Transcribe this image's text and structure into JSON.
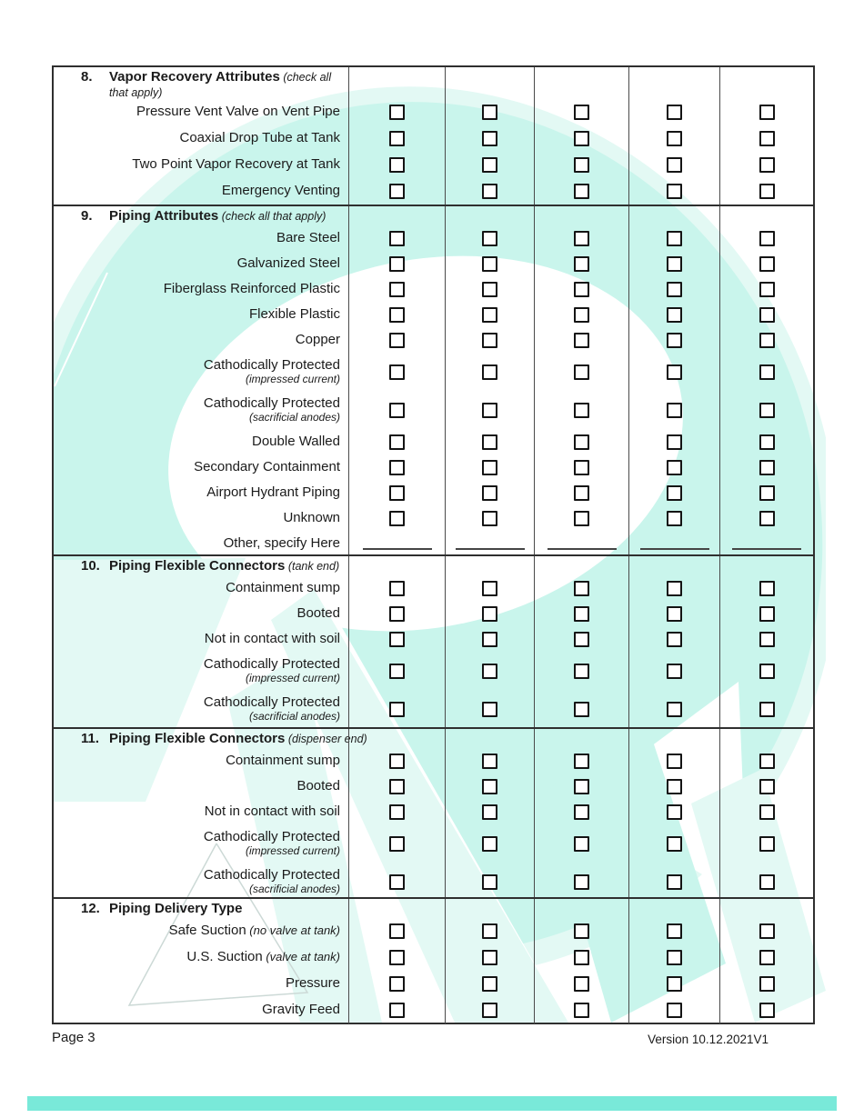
{
  "table": {
    "checkbox_columns": 5,
    "sections": [
      {
        "number": "8.",
        "title": "Vapor Recovery Attributes",
        "note": "(check all that apply)",
        "rows": [
          {
            "label": "Pressure Vent Valve on Vent Pipe"
          },
          {
            "label": "Coaxial Drop Tube at Tank"
          },
          {
            "label": "Two Point Vapor Recovery at Tank"
          },
          {
            "label": "Emergency Venting"
          }
        ]
      },
      {
        "number": "9.",
        "title": "Piping Attributes",
        "note": "(check all that apply)",
        "rows": [
          {
            "label": "Bare Steel"
          },
          {
            "label": "Galvanized Steel"
          },
          {
            "label": "Fiberglass Reinforced Plastic"
          },
          {
            "label": "Flexible Plastic"
          },
          {
            "label": "Copper"
          },
          {
            "label": "Cathodically Protected",
            "sublabel": "(impressed current)"
          },
          {
            "label": "Cathodically Protected",
            "sublabel": "(sacrificial anodes)"
          },
          {
            "label": "Double Walled"
          },
          {
            "label": "Secondary Containment"
          },
          {
            "label": "Airport Hydrant Piping"
          },
          {
            "label": "Unknown"
          },
          {
            "label": "Other, specify Here",
            "blank": true
          }
        ]
      },
      {
        "number": "10.",
        "title": "Piping Flexible Connectors",
        "note": "(tank end)",
        "rows": [
          {
            "label": "Containment sump"
          },
          {
            "label": "Booted"
          },
          {
            "label": "Not in contact with soil"
          },
          {
            "label": "Cathodically Protected",
            "sublabel": "(impressed current)"
          },
          {
            "label": "Cathodically Protected",
            "sublabel": "(sacrificial anodes)"
          }
        ]
      },
      {
        "number": "11.",
        "title": "Piping Flexible Connectors",
        "note": "(dispenser end)",
        "rows": [
          {
            "label": "Containment sump"
          },
          {
            "label": "Booted"
          },
          {
            "label": "Not in contact with soil"
          },
          {
            "label": "Cathodically Protected",
            "sublabel": "(impressed current)"
          },
          {
            "label": "Cathodically Protected",
            "sublabel": "(sacrificial anodes)"
          }
        ]
      },
      {
        "number": "12.",
        "title": "Piping Delivery Type",
        "note": "",
        "rows": [
          {
            "label": "Safe Suction",
            "suffix": "(no valve at tank)"
          },
          {
            "label": "U.S. Suction",
            "suffix": "(valve at tank)"
          },
          {
            "label": "Pressure"
          },
          {
            "label": "Gravity Feed"
          }
        ]
      }
    ]
  },
  "footer": {
    "page_label": "Page 3",
    "version_label": "Version 10.12.2021V1"
  },
  "watermark": {
    "description": "large pale-teal abstract logo watermark behind form",
    "color_main": "#c9f5ec",
    "color_light": "#e3f9f4"
  },
  "accent_bar_color": "#79e9d9"
}
